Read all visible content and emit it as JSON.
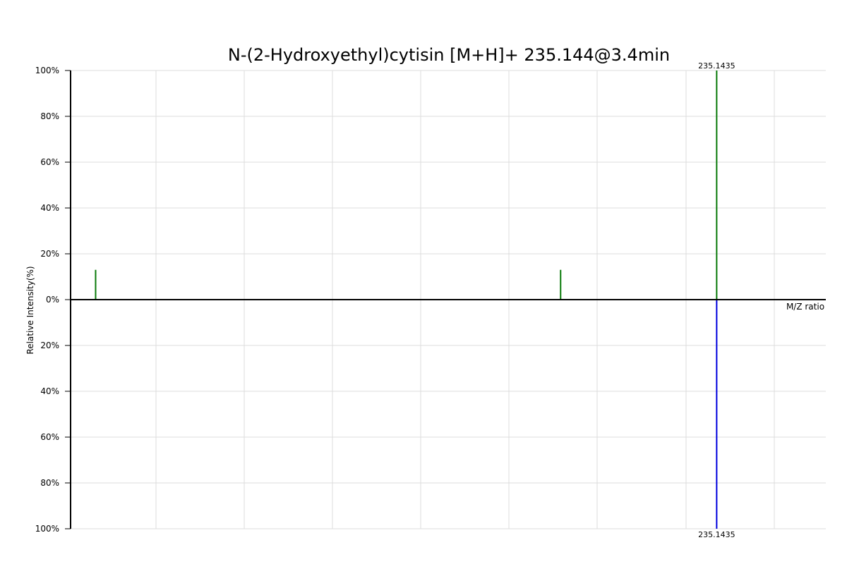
{
  "chart_data": {
    "type": "bar",
    "title": "N-(2-Hydroxyethyl)cytisin [M+H]+ 235.144@3.4min",
    "xlabel": "M/Z ratio",
    "ylabel": "Relative Intensity(%)",
    "xlim": [
      88,
      260
    ],
    "ylim_top": [
      0,
      100
    ],
    "ylim_bottom": [
      0,
      100
    ],
    "top_tick_labels": [
      "100%",
      "80%",
      "60%",
      "40%",
      "20%",
      "0%"
    ],
    "bottom_tick_labels": [
      "20%",
      "40%",
      "60%",
      "80%",
      "100%"
    ],
    "grid": true,
    "series": [
      {
        "direction": "up",
        "color": "#0a7a0a",
        "peaks": [
          {
            "mz": 93.7,
            "intensity": 13,
            "label": ""
          },
          {
            "mz": 199.6,
            "intensity": 13,
            "label": ""
          },
          {
            "mz": 235.1435,
            "intensity": 100,
            "label": "235.1435"
          }
        ]
      },
      {
        "direction": "down",
        "color": "#0000dd",
        "peaks": [
          {
            "mz": 235.1435,
            "intensity": 100,
            "label": "235.1435"
          }
        ]
      }
    ]
  }
}
